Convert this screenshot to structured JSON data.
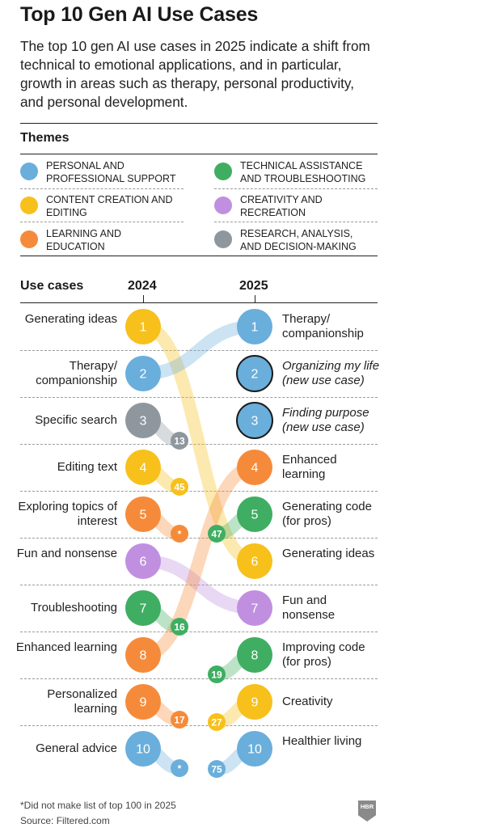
{
  "title": "Top 10 Gen AI Use Cases",
  "subtitle": "The top 10 gen AI use cases in 2025 indicate a shift from technical to emotional applications, and in particular, growth in areas such as therapy, personal productivity, and personal development.",
  "themes": {
    "heading": "Themes",
    "items": [
      {
        "key": "personal",
        "label": "Personal and professional support",
        "color": "#6aaedb"
      },
      {
        "key": "technical",
        "label": "Technical assistance and troubleshooting",
        "color": "#3fae62"
      },
      {
        "key": "content",
        "label": "Content creation and editing",
        "color": "#f7c01b"
      },
      {
        "key": "creativity",
        "label": "Creativity and recreation",
        "color": "#c18fe0"
      },
      {
        "key": "learning",
        "label": "Learning and education",
        "color": "#f58b3a"
      },
      {
        "key": "research",
        "label": "Research, analysis, and decision-making",
        "color": "#8e979d"
      }
    ]
  },
  "use_cases_heading": "Use cases",
  "year_2024": "2024",
  "year_2025": "2025",
  "footnote": "*Did not make list of top 100 in 2025",
  "source": "Source: Filtered.com",
  "logo": "HBR",
  "chart_data": {
    "type": "table",
    "left": [
      {
        "rank": 1,
        "label": "Generating ideas",
        "theme": "content",
        "rank_2025": "6"
      },
      {
        "rank": 2,
        "label": "Therapy/ companionship",
        "theme": "personal",
        "rank_2025": "1"
      },
      {
        "rank": 3,
        "label": "Specific search",
        "theme": "research",
        "rank_2025": "13"
      },
      {
        "rank": 4,
        "label": "Editing text",
        "theme": "content",
        "rank_2025": "45"
      },
      {
        "rank": 5,
        "label": "Exploring topics of interest",
        "theme": "learning",
        "rank_2025": "*"
      },
      {
        "rank": 6,
        "label": "Fun and nonsense",
        "theme": "creativity",
        "rank_2025": "7"
      },
      {
        "rank": 7,
        "label": "Troubleshooting",
        "theme": "technical",
        "rank_2025": "16"
      },
      {
        "rank": 8,
        "label": "Enhanced learning",
        "theme": "learning",
        "rank_2025": "4"
      },
      {
        "rank": 9,
        "label": "Personalized learning",
        "theme": "learning",
        "rank_2025": "17"
      },
      {
        "rank": 10,
        "label": "General advice",
        "theme": "personal",
        "rank_2025": "*"
      }
    ],
    "right": [
      {
        "rank": 1,
        "label": "Therapy/ companionship",
        "theme": "personal",
        "rank_2024": "2",
        "italic": false,
        "new": false
      },
      {
        "rank": 2,
        "label": "Organizing my life (new use case)",
        "theme": "personal",
        "rank_2024": "",
        "italic": true,
        "new": true
      },
      {
        "rank": 3,
        "label": "Finding purpose (new use case)",
        "theme": "personal",
        "rank_2024": "",
        "italic": true,
        "new": true
      },
      {
        "rank": 4,
        "label": "Enhanced learning",
        "theme": "learning",
        "rank_2024": "8",
        "italic": false,
        "new": false
      },
      {
        "rank": 5,
        "label": "Generating code (for pros)",
        "theme": "technical",
        "rank_2024": "47",
        "italic": false,
        "new": false
      },
      {
        "rank": 6,
        "label": "Generating ideas",
        "theme": "content",
        "rank_2024": "1",
        "italic": false,
        "new": false
      },
      {
        "rank": 7,
        "label": "Fun and nonsense",
        "theme": "creativity",
        "rank_2024": "6",
        "italic": false,
        "new": false
      },
      {
        "rank": 8,
        "label": "Improving code (for pros)",
        "theme": "technical",
        "rank_2024": "19",
        "italic": false,
        "new": false
      },
      {
        "rank": 9,
        "label": "Creativity",
        "theme": "content",
        "rank_2024": "27",
        "italic": false,
        "new": false
      },
      {
        "rank": 10,
        "label": "Healthier living",
        "theme": "personal",
        "rank_2024": "75",
        "italic": false,
        "new": false
      }
    ]
  }
}
